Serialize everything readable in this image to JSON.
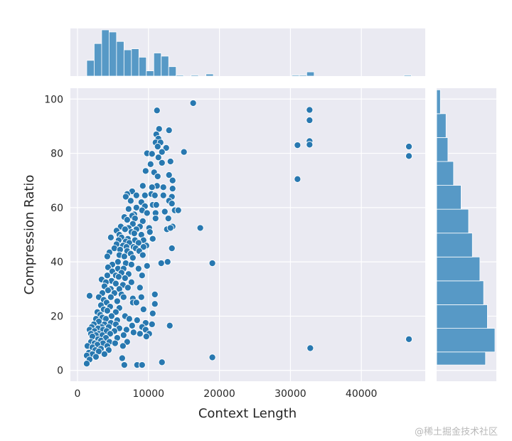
{
  "chart_data": {
    "type": "scatter",
    "xlabel": "Context Length",
    "ylabel": "Compression Ratio",
    "xlim": [
      -1000,
      49000
    ],
    "ylim": [
      -4,
      104
    ],
    "xticks": [
      0,
      10000,
      20000,
      30000,
      40000
    ],
    "yticks": [
      0,
      20,
      40,
      60,
      80,
      100
    ],
    "grid": true,
    "marker_color": "#2878b0",
    "hist_color": "#5799c6",
    "background": "#eaeaf2",
    "marginal_x_hist": {
      "bins": [
        [
          1300,
          2350,
          15
        ],
        [
          2350,
          3400,
          31
        ],
        [
          3400,
          4450,
          44
        ],
        [
          4450,
          5500,
          42
        ],
        [
          5500,
          6550,
          33
        ],
        [
          6550,
          7600,
          25
        ],
        [
          7600,
          8650,
          26
        ],
        [
          8650,
          9700,
          18
        ],
        [
          9700,
          10750,
          5
        ],
        [
          10750,
          11800,
          22
        ],
        [
          11800,
          12850,
          19
        ],
        [
          12850,
          13900,
          9
        ],
        [
          13900,
          14950,
          1
        ],
        [
          14950,
          16000,
          0
        ],
        [
          16000,
          17050,
          1
        ],
        [
          17050,
          18100,
          0
        ],
        [
          18100,
          19150,
          2
        ],
        [
          30200,
          31250,
          1
        ],
        [
          31250,
          32300,
          1
        ],
        [
          32300,
          33350,
          4
        ],
        [
          46000,
          47050,
          1
        ]
      ]
    },
    "marginal_y_hist": {
      "bins": [
        [
          2,
          6.8,
          26
        ],
        [
          6.8,
          15.5,
          31
        ],
        [
          15.5,
          24.2,
          27
        ],
        [
          24.2,
          33,
          25
        ],
        [
          33,
          41.8,
          23
        ],
        [
          41.8,
          50.6,
          19
        ],
        [
          50.6,
          59.4,
          17
        ],
        [
          59.4,
          68.2,
          13
        ],
        [
          68.2,
          77,
          9
        ],
        [
          77,
          85.8,
          6
        ],
        [
          85.8,
          94.6,
          5
        ],
        [
          94.6,
          103.4,
          2
        ]
      ]
    },
    "points": [
      [
        16300,
        98.5
      ],
      [
        11200,
        95.8
      ],
      [
        32700,
        96
      ],
      [
        32700,
        92.2
      ],
      [
        11500,
        89
      ],
      [
        12900,
        88.5
      ],
      [
        11100,
        87
      ],
      [
        11400,
        85.4
      ],
      [
        11000,
        84
      ],
      [
        11700,
        84
      ],
      [
        32700,
        84.5
      ],
      [
        32700,
        83.2
      ],
      [
        31000,
        83
      ],
      [
        11300,
        82.5
      ],
      [
        12500,
        82
      ],
      [
        46700,
        82.5
      ],
      [
        46700,
        79
      ],
      [
        11900,
        80.5
      ],
      [
        9800,
        80
      ],
      [
        10500,
        79.8
      ],
      [
        11400,
        78.5
      ],
      [
        15000,
        80.5
      ],
      [
        13100,
        77
      ],
      [
        10300,
        76
      ],
      [
        11900,
        76.5
      ],
      [
        9600,
        73.5
      ],
      [
        10800,
        73
      ],
      [
        11300,
        71.5
      ],
      [
        12900,
        72
      ],
      [
        31000,
        70.5
      ],
      [
        13400,
        70
      ],
      [
        11200,
        68
      ],
      [
        12100,
        67.5
      ],
      [
        13400,
        67
      ],
      [
        9200,
        68
      ],
      [
        10500,
        67.5
      ],
      [
        7700,
        66
      ],
      [
        10400,
        65
      ],
      [
        9500,
        64.5
      ],
      [
        7000,
        65
      ],
      [
        6800,
        64
      ],
      [
        8300,
        64.5
      ],
      [
        10900,
        64.5
      ],
      [
        12100,
        64.5
      ],
      [
        13300,
        64
      ],
      [
        7500,
        62.5
      ],
      [
        9000,
        62
      ],
      [
        12900,
        62.5
      ],
      [
        13300,
        61.5
      ],
      [
        10600,
        61
      ],
      [
        11100,
        61
      ],
      [
        9500,
        60.5
      ],
      [
        8300,
        60
      ],
      [
        7200,
        59.5
      ],
      [
        9100,
        59
      ],
      [
        12300,
        58.5
      ],
      [
        13700,
        59
      ],
      [
        14200,
        59
      ],
      [
        11000,
        58
      ],
      [
        8000,
        57.5
      ],
      [
        9800,
        58
      ],
      [
        7700,
        57
      ],
      [
        6600,
        56.5
      ],
      [
        8100,
        56
      ],
      [
        11000,
        56
      ],
      [
        12800,
        56
      ],
      [
        7000,
        55.5
      ],
      [
        9200,
        55
      ],
      [
        7800,
        54
      ],
      [
        13400,
        53
      ],
      [
        6100,
        53
      ],
      [
        8800,
        53
      ],
      [
        7200,
        52.5
      ],
      [
        10100,
        52.5
      ],
      [
        12600,
        52
      ],
      [
        13100,
        52.5
      ],
      [
        17300,
        52.5
      ],
      [
        6700,
        52
      ],
      [
        8300,
        52
      ],
      [
        5500,
        51.5
      ],
      [
        7600,
        51
      ],
      [
        10200,
        51
      ],
      [
        8000,
        50.5
      ],
      [
        5900,
        50
      ],
      [
        9000,
        50
      ],
      [
        4700,
        49
      ],
      [
        6200,
        49
      ],
      [
        7100,
        48.5
      ],
      [
        10500,
        48.5
      ],
      [
        5800,
        48
      ],
      [
        8100,
        48
      ],
      [
        9300,
        48
      ],
      [
        10600,
        48.5
      ],
      [
        6800,
        47.5
      ],
      [
        7300,
        47
      ],
      [
        8600,
        47
      ],
      [
        5500,
        46.5
      ],
      [
        6400,
        46
      ],
      [
        9700,
        46
      ],
      [
        6900,
        45.5
      ],
      [
        7900,
        45.5
      ],
      [
        5200,
        45
      ],
      [
        8200,
        45
      ],
      [
        9300,
        45.5
      ],
      [
        13300,
        45
      ],
      [
        6000,
        44.5
      ],
      [
        7000,
        44
      ],
      [
        8700,
        44
      ],
      [
        4500,
        43.5
      ],
      [
        7500,
        43
      ],
      [
        5900,
        42.5
      ],
      [
        4200,
        42
      ],
      [
        9200,
        42.5
      ],
      [
        6600,
        42
      ],
      [
        7800,
        41.5
      ],
      [
        12700,
        40
      ],
      [
        11800,
        39.5
      ],
      [
        19000,
        39.5
      ],
      [
        5700,
        40
      ],
      [
        6800,
        39.5
      ],
      [
        4900,
        39
      ],
      [
        7600,
        39
      ],
      [
        9800,
        38.5
      ],
      [
        4300,
        38
      ],
      [
        5700,
        37.5
      ],
      [
        6500,
        37.5
      ],
      [
        8600,
        37.5
      ],
      [
        4900,
        36.5
      ],
      [
        6200,
        36
      ],
      [
        7200,
        35.5
      ],
      [
        4200,
        35
      ],
      [
        5400,
        35
      ],
      [
        9100,
        35
      ],
      [
        5800,
        34.5
      ],
      [
        6700,
        34
      ],
      [
        3400,
        33.5
      ],
      [
        4800,
        33
      ],
      [
        7600,
        32.5
      ],
      [
        4000,
        32.5
      ],
      [
        5400,
        32
      ],
      [
        6400,
        31.5
      ],
      [
        3800,
        31
      ],
      [
        7100,
        30.5
      ],
      [
        8800,
        30.5
      ],
      [
        4700,
        30
      ],
      [
        5900,
        30
      ],
      [
        4300,
        29.5
      ],
      [
        3500,
        28.5
      ],
      [
        5200,
        28.5
      ],
      [
        6200,
        28
      ],
      [
        10900,
        28
      ],
      [
        1700,
        27.5
      ],
      [
        3000,
        27
      ],
      [
        4700,
        27
      ],
      [
        6500,
        27
      ],
      [
        9000,
        27
      ],
      [
        7800,
        26.5
      ],
      [
        3700,
        26
      ],
      [
        5600,
        25.5
      ],
      [
        4100,
        25
      ],
      [
        7800,
        25
      ],
      [
        8300,
        25
      ],
      [
        10900,
        24.5
      ],
      [
        3300,
        24
      ],
      [
        4600,
        23.5
      ],
      [
        5900,
        23
      ],
      [
        3700,
        22.5
      ],
      [
        9300,
        22.5
      ],
      [
        4200,
        22
      ],
      [
        2800,
        21.5
      ],
      [
        5400,
        21.5
      ],
      [
        10600,
        21
      ],
      [
        3200,
        20.5
      ],
      [
        4800,
        20
      ],
      [
        6700,
        20
      ],
      [
        3500,
        19.5
      ],
      [
        2600,
        19
      ],
      [
        4000,
        19
      ],
      [
        7300,
        19
      ],
      [
        5600,
        18.5
      ],
      [
        8400,
        18.5
      ],
      [
        3000,
        18
      ],
      [
        4700,
        17.5
      ],
      [
        9600,
        17.5
      ],
      [
        2300,
        17
      ],
      [
        3800,
        17
      ],
      [
        5400,
        17
      ],
      [
        10500,
        17
      ],
      [
        7700,
        16.5
      ],
      [
        13000,
        16.5
      ],
      [
        2000,
        16
      ],
      [
        3400,
        16
      ],
      [
        4400,
        16
      ],
      [
        9100,
        16
      ],
      [
        2900,
        15.5
      ],
      [
        5900,
        15.5
      ],
      [
        1700,
        15
      ],
      [
        3600,
        15
      ],
      [
        6900,
        15
      ],
      [
        9600,
        15
      ],
      [
        2400,
        14.5
      ],
      [
        4100,
        14.5
      ],
      [
        5200,
        14.5
      ],
      [
        7900,
        14
      ],
      [
        1900,
        13.5
      ],
      [
        3000,
        13.5
      ],
      [
        4600,
        13.5
      ],
      [
        8800,
        13.5
      ],
      [
        10100,
        13.5
      ],
      [
        2600,
        13
      ],
      [
        3500,
        13
      ],
      [
        6500,
        13
      ],
      [
        9700,
        12.5
      ],
      [
        2100,
        12.5
      ],
      [
        4000,
        12
      ],
      [
        5600,
        12
      ],
      [
        2900,
        11.5
      ],
      [
        46700,
        11.5
      ],
      [
        3300,
        11
      ],
      [
        1900,
        10.5
      ],
      [
        4500,
        10.5
      ],
      [
        7000,
        10.5
      ],
      [
        2400,
        10
      ],
      [
        3600,
        10
      ],
      [
        5300,
        10
      ],
      [
        2800,
        9.5
      ],
      [
        6400,
        9
      ],
      [
        1400,
        9
      ],
      [
        4200,
        9
      ],
      [
        2100,
        8.5
      ],
      [
        32800,
        8.2
      ],
      [
        3300,
        8
      ],
      [
        2500,
        7.5
      ],
      [
        4400,
        7.5
      ],
      [
        3000,
        7
      ],
      [
        1600,
        6.5
      ],
      [
        2100,
        6
      ],
      [
        3800,
        6
      ],
      [
        1300,
        5.5
      ],
      [
        2600,
        5
      ],
      [
        19000,
        4.8
      ],
      [
        6300,
        4.5
      ],
      [
        1700,
        4
      ],
      [
        11900,
        3
      ],
      [
        1300,
        2.5
      ],
      [
        6600,
        2
      ],
      [
        8400,
        2
      ],
      [
        9100,
        2
      ]
    ]
  },
  "watermark": "@稀土掘金技术社区"
}
